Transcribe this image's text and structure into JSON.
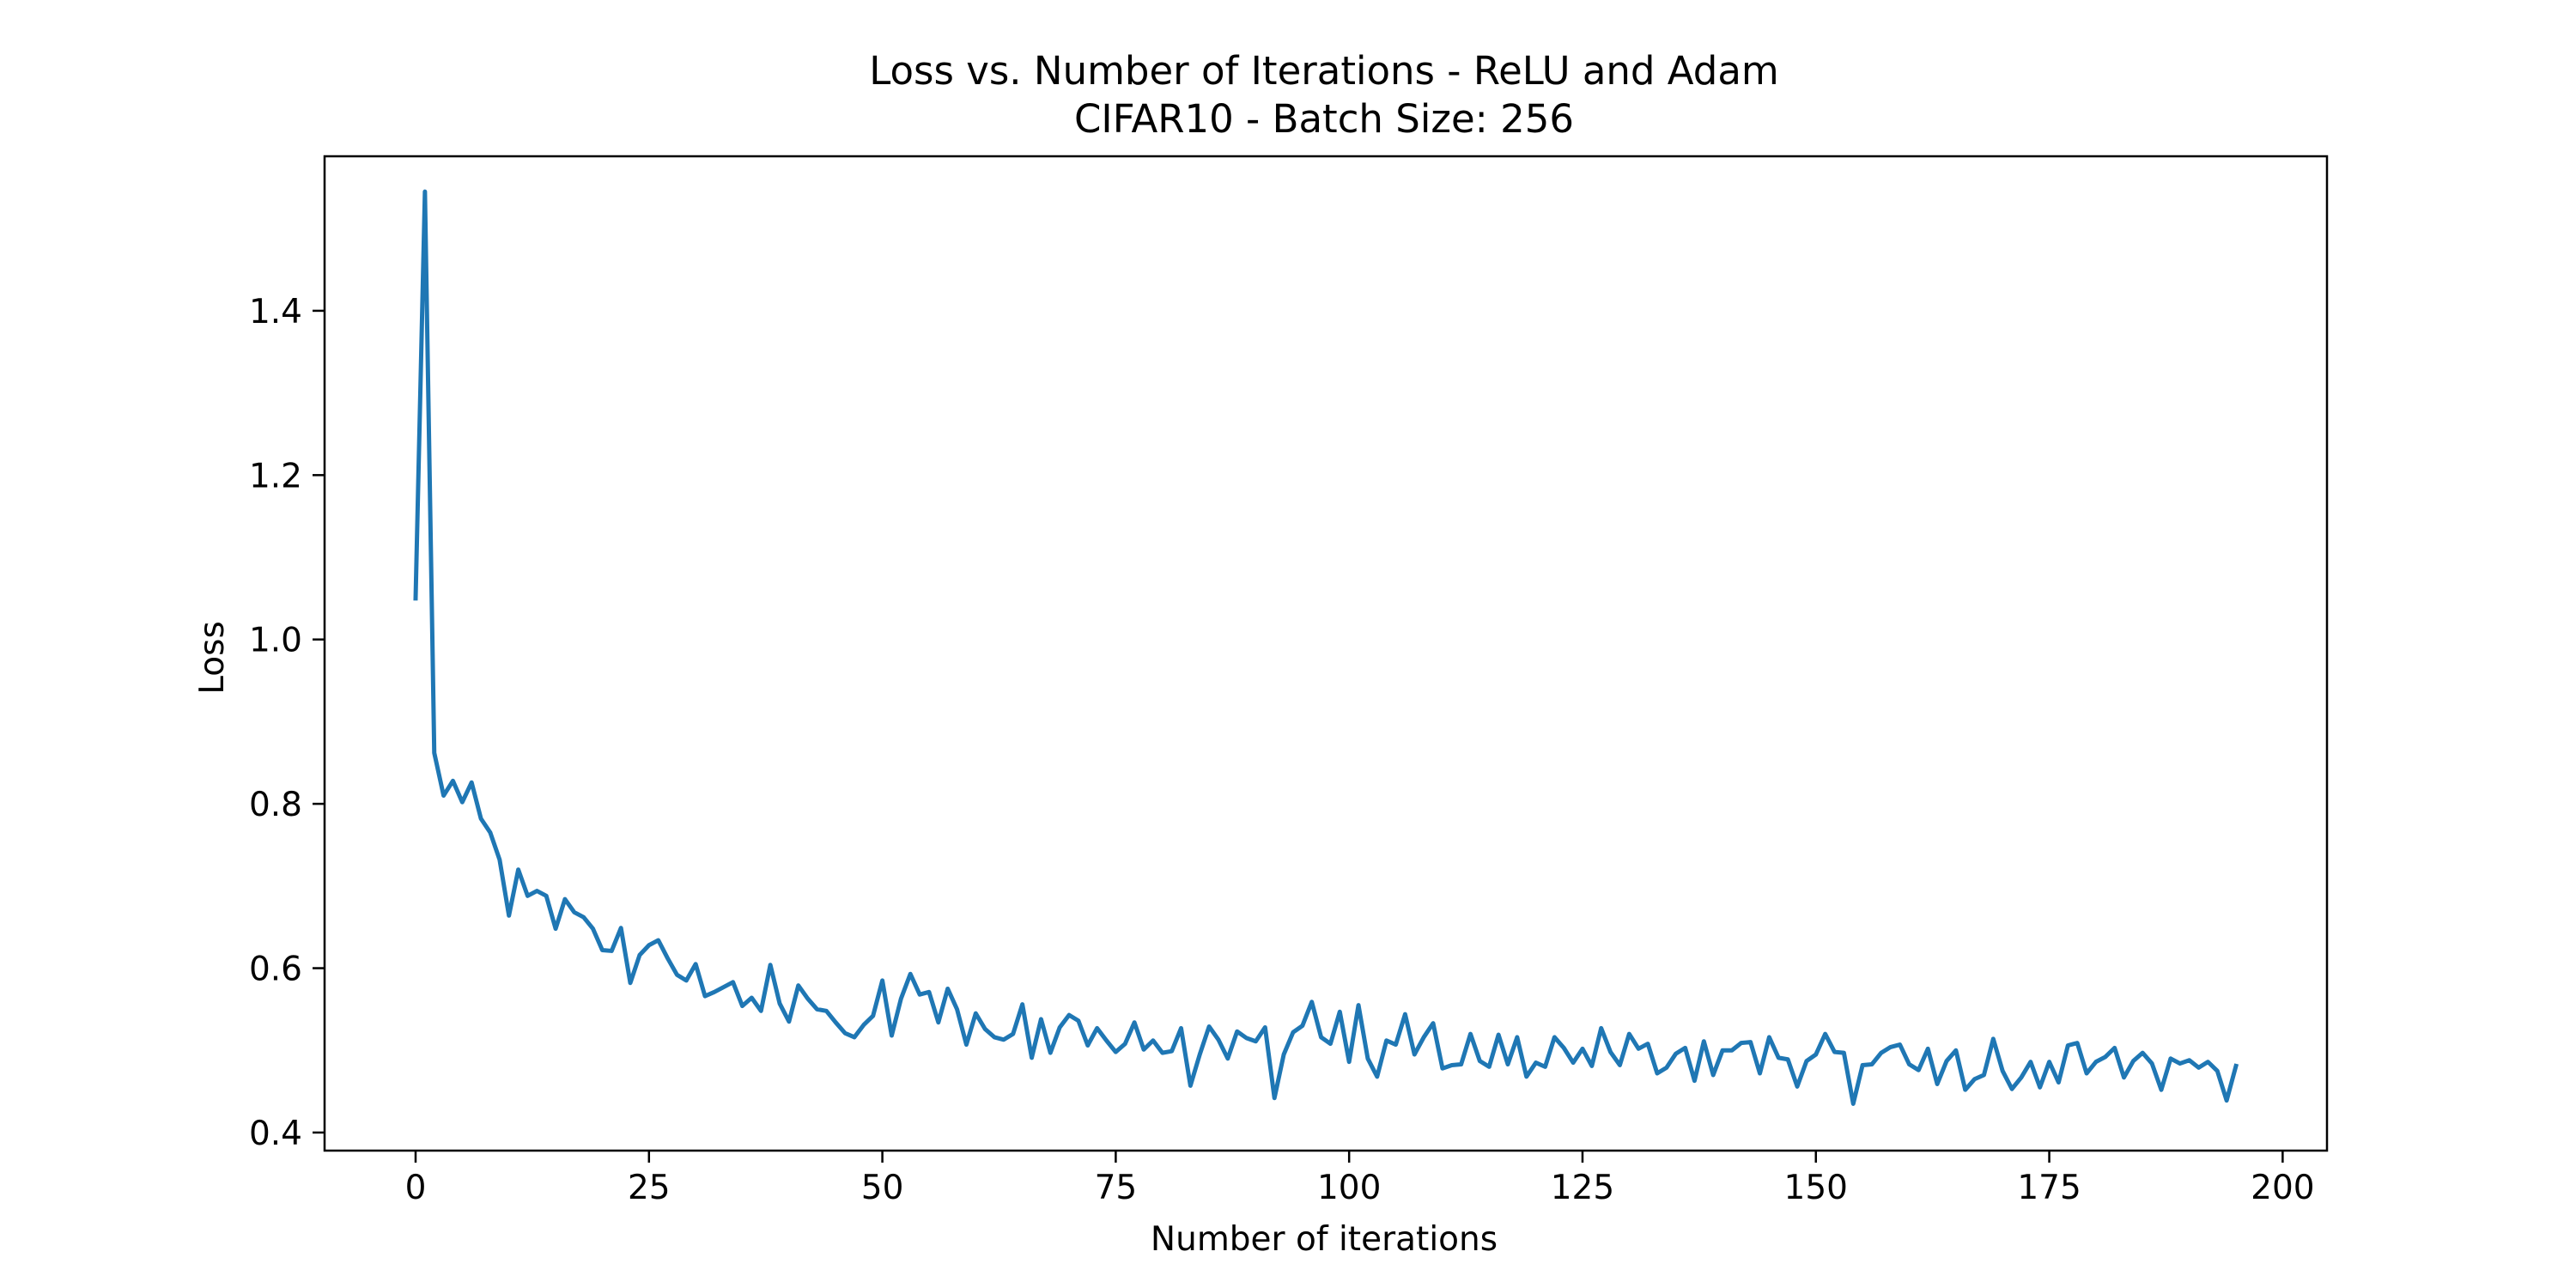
{
  "chart_data": {
    "type": "line",
    "title": "Loss vs. Number of Iterations - ReLU and Adam",
    "subtitle": "CIFAR10 - Batch Size: 256",
    "xlabel": "Number of iterations",
    "ylabel": "Loss",
    "xlim": [
      -9.75,
      204.75
    ],
    "ylim": [
      0.378,
      1.588
    ],
    "xticks": [
      0,
      25,
      50,
      75,
      100,
      125,
      150,
      175,
      200
    ],
    "xtick_labels": [
      "0",
      "25",
      "50",
      "75",
      "100",
      "125",
      "150",
      "175",
      "200"
    ],
    "yticks": [
      0.4,
      0.6,
      0.8,
      1.0,
      1.2,
      1.4
    ],
    "ytick_labels": [
      "0.4",
      "0.6",
      "0.8",
      "1.0",
      "1.2",
      "1.4"
    ],
    "grid": false,
    "series": [
      {
        "color": "#1f77b4",
        "x": [
          0,
          1,
          2,
          3,
          4,
          5,
          6,
          7,
          8,
          9,
          10,
          11,
          12,
          13,
          14,
          15,
          16,
          17,
          18,
          19,
          20,
          21,
          22,
          23,
          24,
          25,
          26,
          27,
          28,
          29,
          30,
          31,
          32,
          33,
          34,
          35,
          36,
          37,
          38,
          39,
          40,
          41,
          42,
          43,
          44,
          45,
          46,
          47,
          48,
          49,
          50,
          51,
          52,
          53,
          54,
          55,
          56,
          57,
          58,
          59,
          60,
          61,
          62,
          63,
          64,
          65,
          66,
          67,
          68,
          69,
          70,
          71,
          72,
          73,
          74,
          75,
          76,
          77,
          78,
          79,
          80,
          81,
          82,
          83,
          84,
          85,
          86,
          87,
          88,
          89,
          90,
          91,
          92,
          93,
          94,
          95,
          96,
          97,
          98,
          99,
          100,
          101,
          102,
          103,
          104,
          105,
          106,
          107,
          108,
          109,
          110,
          111,
          112,
          113,
          114,
          115,
          116,
          117,
          118,
          119,
          120,
          121,
          122,
          123,
          124,
          125,
          126,
          127,
          128,
          129,
          130,
          131,
          132,
          133,
          134,
          135,
          136,
          137,
          138,
          139,
          140,
          141,
          142,
          143,
          144,
          145,
          146,
          147,
          148,
          149,
          150,
          151,
          152,
          153,
          154,
          155,
          156,
          157,
          158,
          159,
          160,
          161,
          162,
          163,
          164,
          165,
          166,
          167,
          168,
          169,
          170,
          171,
          172,
          173,
          174,
          175,
          176,
          177,
          178,
          179,
          180,
          181,
          182,
          183,
          184,
          185,
          186,
          187,
          188,
          189,
          190,
          191,
          192,
          193,
          194,
          195
        ],
        "y": [
          1.05,
          1.545,
          0.862,
          0.81,
          0.828,
          0.802,
          0.826,
          0.782,
          0.765,
          0.732,
          0.664,
          0.72,
          0.688,
          0.694,
          0.688,
          0.648,
          0.684,
          0.668,
          0.662,
          0.648,
          0.622,
          0.621,
          0.649,
          0.582,
          0.616,
          0.628,
          0.634,
          0.612,
          0.592,
          0.585,
          0.605,
          0.566,
          0.571,
          0.577,
          0.583,
          0.554,
          0.564,
          0.548,
          0.604,
          0.557,
          0.535,
          0.579,
          0.563,
          0.55,
          0.548,
          0.534,
          0.521,
          0.516,
          0.531,
          0.542,
          0.585,
          0.518,
          0.563,
          0.593,
          0.568,
          0.571,
          0.534,
          0.575,
          0.55,
          0.507,
          0.545,
          0.526,
          0.516,
          0.513,
          0.52,
          0.556,
          0.491,
          0.538,
          0.497,
          0.528,
          0.543,
          0.536,
          0.506,
          0.527,
          0.512,
          0.498,
          0.508,
          0.534,
          0.501,
          0.512,
          0.497,
          0.499,
          0.527,
          0.457,
          0.495,
          0.529,
          0.513,
          0.49,
          0.523,
          0.515,
          0.511,
          0.528,
          0.442,
          0.495,
          0.522,
          0.53,
          0.559,
          0.516,
          0.508,
          0.547,
          0.486,
          0.555,
          0.49,
          0.468,
          0.512,
          0.507,
          0.544,
          0.495,
          0.516,
          0.533,
          0.478,
          0.482,
          0.483,
          0.52,
          0.487,
          0.48,
          0.519,
          0.483,
          0.516,
          0.468,
          0.485,
          0.48,
          0.516,
          0.503,
          0.485,
          0.502,
          0.481,
          0.527,
          0.498,
          0.482,
          0.52,
          0.502,
          0.508,
          0.472,
          0.479,
          0.496,
          0.503,
          0.463,
          0.511,
          0.47,
          0.5,
          0.5,
          0.509,
          0.51,
          0.472,
          0.516,
          0.491,
          0.489,
          0.456,
          0.487,
          0.495,
          0.52,
          0.498,
          0.497,
          0.435,
          0.482,
          0.483,
          0.497,
          0.504,
          0.507,
          0.483,
          0.476,
          0.502,
          0.459,
          0.487,
          0.5,
          0.452,
          0.465,
          0.47,
          0.514,
          0.475,
          0.453,
          0.467,
          0.486,
          0.455,
          0.486,
          0.461,
          0.506,
          0.509,
          0.472,
          0.486,
          0.492,
          0.503,
          0.467,
          0.487,
          0.497,
          0.484,
          0.452,
          0.49,
          0.484,
          0.488,
          0.479,
          0.486,
          0.475,
          0.439,
          0.481
        ]
      }
    ]
  }
}
